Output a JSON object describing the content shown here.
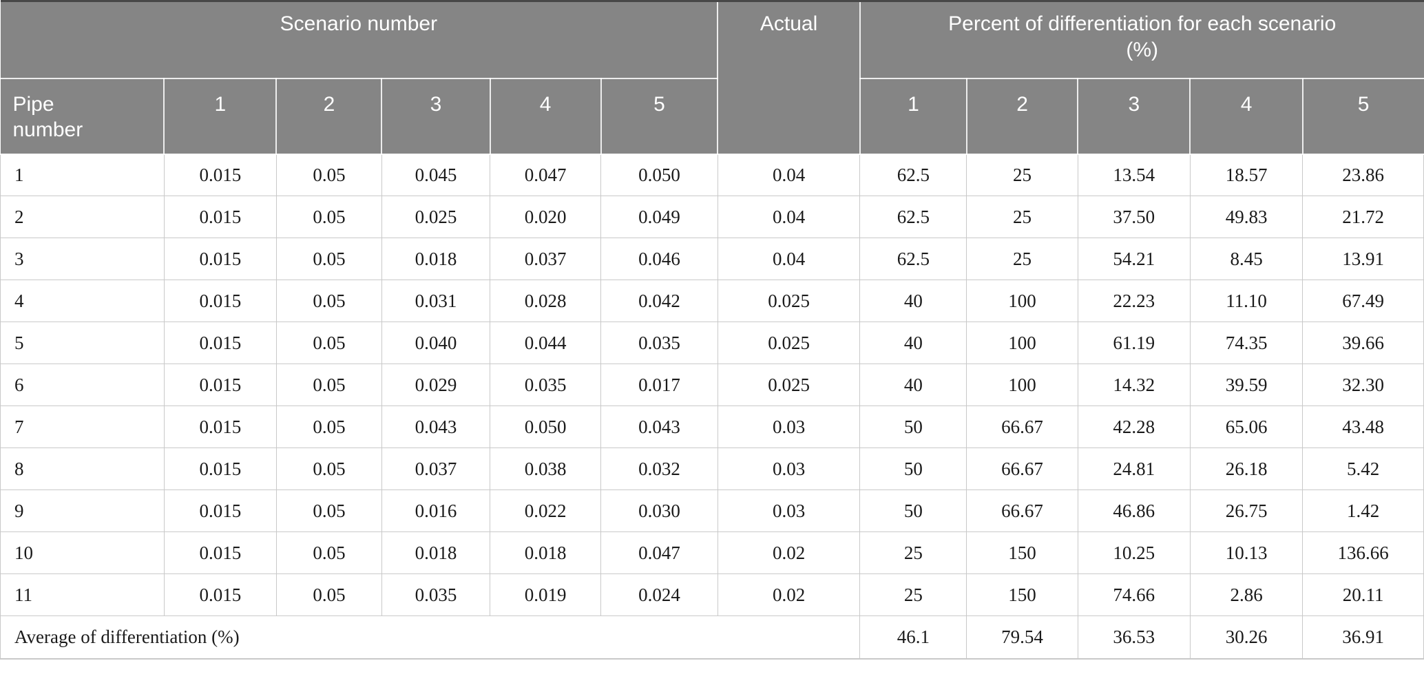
{
  "table": {
    "header": {
      "scenario_group_label": "Scenario number",
      "actual_label": "Actual",
      "percent_group_label": "Percent of differentiation for each scenario (%)",
      "pipe_label": "Pipe number",
      "scenario_columns": [
        "1",
        "2",
        "3",
        "4",
        "5"
      ],
      "percent_columns": [
        "1",
        "2",
        "3",
        "4",
        "5"
      ]
    },
    "rows": [
      {
        "pipe": "1",
        "scenarios": [
          "0.015",
          "0.05",
          "0.045",
          "0.047",
          "0.050"
        ],
        "actual": "0.04",
        "percents": [
          "62.5",
          "25",
          "13.54",
          "18.57",
          "23.86"
        ]
      },
      {
        "pipe": "2",
        "scenarios": [
          "0.015",
          "0.05",
          "0.025",
          "0.020",
          "0.049"
        ],
        "actual": "0.04",
        "percents": [
          "62.5",
          "25",
          "37.50",
          "49.83",
          "21.72"
        ]
      },
      {
        "pipe": "3",
        "scenarios": [
          "0.015",
          "0.05",
          "0.018",
          "0.037",
          "0.046"
        ],
        "actual": "0.04",
        "percents": [
          "62.5",
          "25",
          "54.21",
          "8.45",
          "13.91"
        ]
      },
      {
        "pipe": "4",
        "scenarios": [
          "0.015",
          "0.05",
          "0.031",
          "0.028",
          "0.042"
        ],
        "actual": "0.025",
        "percents": [
          "40",
          "100",
          "22.23",
          "11.10",
          "67.49"
        ]
      },
      {
        "pipe": "5",
        "scenarios": [
          "0.015",
          "0.05",
          "0.040",
          "0.044",
          "0.035"
        ],
        "actual": "0.025",
        "percents": [
          "40",
          "100",
          "61.19",
          "74.35",
          "39.66"
        ]
      },
      {
        "pipe": "6",
        "scenarios": [
          "0.015",
          "0.05",
          "0.029",
          "0.035",
          "0.017"
        ],
        "actual": "0.025",
        "percents": [
          "40",
          "100",
          "14.32",
          "39.59",
          "32.30"
        ]
      },
      {
        "pipe": "7",
        "scenarios": [
          "0.015",
          "0.05",
          "0.043",
          "0.050",
          "0.043"
        ],
        "actual": "0.03",
        "percents": [
          "50",
          "66.67",
          "42.28",
          "65.06",
          "43.48"
        ]
      },
      {
        "pipe": "8",
        "scenarios": [
          "0.015",
          "0.05",
          "0.037",
          "0.038",
          "0.032"
        ],
        "actual": "0.03",
        "percents": [
          "50",
          "66.67",
          "24.81",
          "26.18",
          "5.42"
        ]
      },
      {
        "pipe": "9",
        "scenarios": [
          "0.015",
          "0.05",
          "0.016",
          "0.022",
          "0.030"
        ],
        "actual": "0.03",
        "percents": [
          "50",
          "66.67",
          "46.86",
          "26.75",
          "1.42"
        ]
      },
      {
        "pipe": "10",
        "scenarios": [
          "0.015",
          "0.05",
          "0.018",
          "0.018",
          "0.047"
        ],
        "actual": "0.02",
        "percents": [
          "25",
          "150",
          "10.25",
          "10.13",
          "136.66"
        ]
      },
      {
        "pipe": "11",
        "scenarios": [
          "0.015",
          "0.05",
          "0.035",
          "0.019",
          "0.024"
        ],
        "actual": "0.02",
        "percents": [
          "25",
          "150",
          "74.66",
          "2.86",
          "20.11"
        ]
      }
    ],
    "footer": {
      "label": "Average of differentiation (%)",
      "values": [
        "46.1",
        "79.54",
        "36.53",
        "30.26",
        "36.91"
      ]
    }
  },
  "colors": {
    "header_bg": "#858585",
    "header_text": "#ffffff",
    "top_bar": "#474747",
    "grid_line": "#c9c9c9",
    "body_text": "#1a1a1a"
  }
}
